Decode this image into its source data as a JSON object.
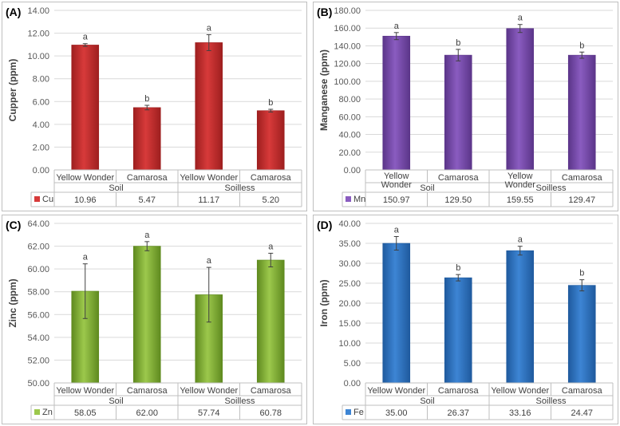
{
  "chart_data": [
    {
      "type": "bar",
      "panel_label": "(A)",
      "ylabel": "Cupper (ppm)",
      "ylim": [
        0,
        14
      ],
      "ystep": 2,
      "ydecimals": 2,
      "yticks": [
        "0.00",
        "2.00",
        "4.00",
        "6.00",
        "8.00",
        "10.00",
        "12.00",
        "14.00"
      ],
      "categories": [
        "Yellow Wonder",
        "Camarosa",
        "Yellow Wonder",
        "Camarosa"
      ],
      "groups": [
        "Soil",
        "Soilless"
      ],
      "series": [
        {
          "name": "Cu",
          "values": [
            10.96,
            5.47,
            11.17,
            5.2
          ],
          "errors": [
            0.12,
            0.2,
            0.7,
            0.12
          ]
        }
      ],
      "value_labels": [
        "10.96",
        "5.47",
        "11.17",
        "5.20"
      ],
      "letters": [
        "a",
        "b",
        "a",
        "b"
      ],
      "color": "#d73a3a",
      "color_dark": "#9e1f1f"
    },
    {
      "type": "bar",
      "panel_label": "(B)",
      "ylabel": "Manganese (ppm)",
      "ylim": [
        0,
        180
      ],
      "ystep": 20,
      "ydecimals": 2,
      "yticks": [
        "0.00",
        "20.00",
        "40.00",
        "60.00",
        "80.00",
        "100.00",
        "120.00",
        "140.00",
        "160.00",
        "180.00"
      ],
      "categories": [
        "Yellow\nWonder",
        "Camarosa",
        "Yellow\nWonder",
        "Camarosa"
      ],
      "groups": [
        "Soil",
        "Soilless"
      ],
      "series": [
        {
          "name": "Mn",
          "values": [
            150.97,
            129.5,
            159.55,
            129.47
          ],
          "errors": [
            4,
            6.5,
            4.5,
            3.5
          ]
        }
      ],
      "value_labels": [
        "150.97",
        "129.50",
        "159.55",
        "129.47"
      ],
      "letters": [
        "a",
        "b",
        "a",
        "b"
      ],
      "color": "#8a5cc0",
      "color_dark": "#5b3589"
    },
    {
      "type": "bar",
      "panel_label": "(C)",
      "ylabel": "Zinc (ppm)",
      "ylim": [
        50,
        64
      ],
      "ystep": 2,
      "ydecimals": 2,
      "yticks": [
        "50.00",
        "52.00",
        "54.00",
        "56.00",
        "58.00",
        "60.00",
        "62.00",
        "64.00"
      ],
      "categories": [
        "Yellow Wonder",
        "Camarosa",
        "Yellow Wonder",
        "Camarosa"
      ],
      "groups": [
        "Soil",
        "Soilless"
      ],
      "series": [
        {
          "name": "Zn",
          "values": [
            58.05,
            62.0,
            57.74,
            60.78
          ],
          "errors": [
            2.4,
            0.4,
            2.4,
            0.6
          ]
        }
      ],
      "value_labels": [
        "58.05",
        "62.00",
        "57.74",
        "60.78"
      ],
      "letters": [
        "a",
        "a",
        "a",
        "a"
      ],
      "color": "#9cc84c",
      "color_dark": "#5f8a1f"
    },
    {
      "type": "bar",
      "panel_label": "(D)",
      "ylabel": "Iron (ppm)",
      "ylim": [
        0,
        40
      ],
      "ystep": 5,
      "ydecimals": 2,
      "yticks": [
        "0.00",
        "5.00",
        "10.00",
        "15.00",
        "20.00",
        "25.00",
        "30.00",
        "35.00",
        "40.00"
      ],
      "categories": [
        "Yellow Wonder",
        "Camarosa",
        "Yellow Wonder",
        "Camarosa"
      ],
      "groups": [
        "Soil",
        "Soilless"
      ],
      "series": [
        {
          "name": "Fe",
          "values": [
            35.0,
            26.37,
            33.16,
            24.47
          ],
          "errors": [
            1.7,
            0.8,
            1.1,
            1.4
          ]
        }
      ],
      "value_labels": [
        "35.00",
        "26.37",
        "33.16",
        "24.47"
      ],
      "letters": [
        "a",
        "b",
        "a",
        "b"
      ],
      "color": "#3d85d4",
      "color_dark": "#1f5a9e"
    }
  ]
}
